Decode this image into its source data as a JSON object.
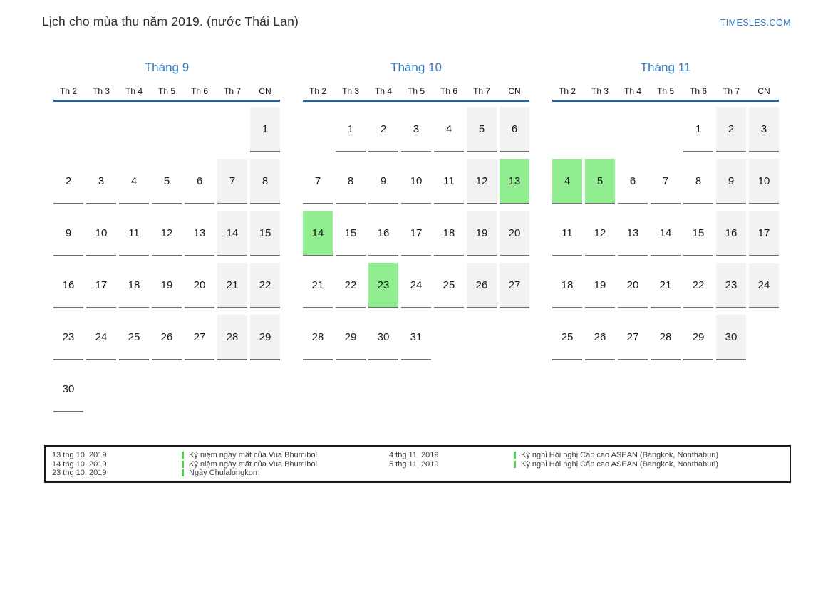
{
  "page": {
    "title": "Lịch cho mùa thu năm 2019. (nước Thái Lan)",
    "brand": "TIMESLES.COM"
  },
  "colors": {
    "accent_blue": "#3478bc",
    "header_rule_blue": "#2d6397",
    "weekend_bg": "#f2f2f2",
    "holiday_green": "#90ee90",
    "legend_marker_green": "#4bd34b",
    "day_underline": "#6e6e6e",
    "legend_border": "#1a1a1a"
  },
  "calendar": {
    "weekday_headers": [
      "Th 2",
      "Th 3",
      "Th 4",
      "Th 5",
      "Th 6",
      "Th 7",
      "CN"
    ],
    "weekend_columns": [
      5,
      6
    ],
    "months": [
      {
        "title": "Tháng 9",
        "weeks": [
          [
            null,
            null,
            null,
            null,
            null,
            null,
            1
          ],
          [
            2,
            3,
            4,
            5,
            6,
            7,
            8
          ],
          [
            9,
            10,
            11,
            12,
            13,
            14,
            15
          ],
          [
            16,
            17,
            18,
            19,
            20,
            21,
            22
          ],
          [
            23,
            24,
            25,
            26,
            27,
            28,
            29
          ],
          [
            30,
            null,
            null,
            null,
            null,
            null,
            null
          ]
        ],
        "holiday_days": []
      },
      {
        "title": "Tháng 10",
        "weeks": [
          [
            null,
            1,
            2,
            3,
            4,
            5,
            6
          ],
          [
            7,
            8,
            9,
            10,
            11,
            12,
            13
          ],
          [
            14,
            15,
            16,
            17,
            18,
            19,
            20
          ],
          [
            21,
            22,
            23,
            24,
            25,
            26,
            27
          ],
          [
            28,
            29,
            30,
            31,
            null,
            null,
            null
          ]
        ],
        "holiday_days": [
          13,
          14,
          23
        ]
      },
      {
        "title": "Tháng 11",
        "weeks": [
          [
            null,
            null,
            null,
            null,
            1,
            2,
            3
          ],
          [
            4,
            5,
            6,
            7,
            8,
            9,
            10
          ],
          [
            11,
            12,
            13,
            14,
            15,
            16,
            17
          ],
          [
            18,
            19,
            20,
            21,
            22,
            23,
            24
          ],
          [
            25,
            26,
            27,
            28,
            29,
            30,
            null
          ]
        ],
        "holiday_days": [
          4,
          5
        ]
      }
    ]
  },
  "legend": {
    "groups": [
      {
        "entries": [
          {
            "date": "13 thg 10, 2019",
            "name": "Kỷ niệm ngày mất của Vua Bhumibol"
          },
          {
            "date": "14 thg 10, 2019",
            "name": "Kỷ niệm ngày mất của Vua Bhumibol"
          },
          {
            "date": "23 thg 10, 2019",
            "name": "Ngày Chulalongkorn"
          }
        ]
      },
      {
        "entries": [
          {
            "date": "4 thg 11, 2019",
            "name": "Kỳ nghỉ Hội nghị Cấp cao ASEAN (Bangkok, Nonthaburi)"
          },
          {
            "date": "5 thg 11, 2019",
            "name": "Kỳ nghỉ Hội nghị Cấp cao ASEAN (Bangkok, Nonthaburi)"
          }
        ]
      }
    ]
  }
}
